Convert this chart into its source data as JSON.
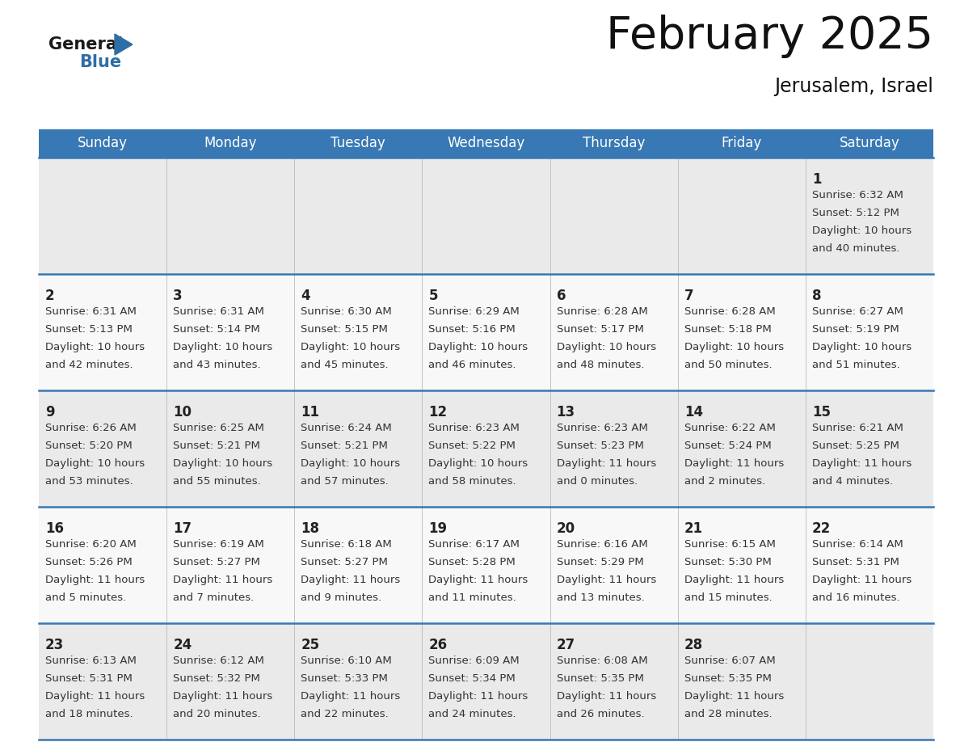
{
  "title": "February 2025",
  "subtitle": "Jerusalem, Israel",
  "header_bg_color": "#3878B4",
  "header_text_color": "#FFFFFF",
  "cell_bg_even": "#EAEAEA",
  "cell_bg_odd": "#F8F8F8",
  "day_number_color": "#222222",
  "info_text_color": "#333333",
  "separator_color": "#3878B4",
  "weekdays": [
    "Sunday",
    "Monday",
    "Tuesday",
    "Wednesday",
    "Thursday",
    "Friday",
    "Saturday"
  ],
  "days": [
    {
      "day": 1,
      "col": 6,
      "row": 0,
      "sunrise": "6:32 AM",
      "sunset": "5:12 PM",
      "daylight_h": "10 hours",
      "daylight_m": "and 40 minutes."
    },
    {
      "day": 2,
      "col": 0,
      "row": 1,
      "sunrise": "6:31 AM",
      "sunset": "5:13 PM",
      "daylight_h": "10 hours",
      "daylight_m": "and 42 minutes."
    },
    {
      "day": 3,
      "col": 1,
      "row": 1,
      "sunrise": "6:31 AM",
      "sunset": "5:14 PM",
      "daylight_h": "10 hours",
      "daylight_m": "and 43 minutes."
    },
    {
      "day": 4,
      "col": 2,
      "row": 1,
      "sunrise": "6:30 AM",
      "sunset": "5:15 PM",
      "daylight_h": "10 hours",
      "daylight_m": "and 45 minutes."
    },
    {
      "day": 5,
      "col": 3,
      "row": 1,
      "sunrise": "6:29 AM",
      "sunset": "5:16 PM",
      "daylight_h": "10 hours",
      "daylight_m": "and 46 minutes."
    },
    {
      "day": 6,
      "col": 4,
      "row": 1,
      "sunrise": "6:28 AM",
      "sunset": "5:17 PM",
      "daylight_h": "10 hours",
      "daylight_m": "and 48 minutes."
    },
    {
      "day": 7,
      "col": 5,
      "row": 1,
      "sunrise": "6:28 AM",
      "sunset": "5:18 PM",
      "daylight_h": "10 hours",
      "daylight_m": "and 50 minutes."
    },
    {
      "day": 8,
      "col": 6,
      "row": 1,
      "sunrise": "6:27 AM",
      "sunset": "5:19 PM",
      "daylight_h": "10 hours",
      "daylight_m": "and 51 minutes."
    },
    {
      "day": 9,
      "col": 0,
      "row": 2,
      "sunrise": "6:26 AM",
      "sunset": "5:20 PM",
      "daylight_h": "10 hours",
      "daylight_m": "and 53 minutes."
    },
    {
      "day": 10,
      "col": 1,
      "row": 2,
      "sunrise": "6:25 AM",
      "sunset": "5:21 PM",
      "daylight_h": "10 hours",
      "daylight_m": "and 55 minutes."
    },
    {
      "day": 11,
      "col": 2,
      "row": 2,
      "sunrise": "6:24 AM",
      "sunset": "5:21 PM",
      "daylight_h": "10 hours",
      "daylight_m": "and 57 minutes."
    },
    {
      "day": 12,
      "col": 3,
      "row": 2,
      "sunrise": "6:23 AM",
      "sunset": "5:22 PM",
      "daylight_h": "10 hours",
      "daylight_m": "and 58 minutes."
    },
    {
      "day": 13,
      "col": 4,
      "row": 2,
      "sunrise": "6:23 AM",
      "sunset": "5:23 PM",
      "daylight_h": "11 hours",
      "daylight_m": "and 0 minutes."
    },
    {
      "day": 14,
      "col": 5,
      "row": 2,
      "sunrise": "6:22 AM",
      "sunset": "5:24 PM",
      "daylight_h": "11 hours",
      "daylight_m": "and 2 minutes."
    },
    {
      "day": 15,
      "col": 6,
      "row": 2,
      "sunrise": "6:21 AM",
      "sunset": "5:25 PM",
      "daylight_h": "11 hours",
      "daylight_m": "and 4 minutes."
    },
    {
      "day": 16,
      "col": 0,
      "row": 3,
      "sunrise": "6:20 AM",
      "sunset": "5:26 PM",
      "daylight_h": "11 hours",
      "daylight_m": "and 5 minutes."
    },
    {
      "day": 17,
      "col": 1,
      "row": 3,
      "sunrise": "6:19 AM",
      "sunset": "5:27 PM",
      "daylight_h": "11 hours",
      "daylight_m": "and 7 minutes."
    },
    {
      "day": 18,
      "col": 2,
      "row": 3,
      "sunrise": "6:18 AM",
      "sunset": "5:27 PM",
      "daylight_h": "11 hours",
      "daylight_m": "and 9 minutes."
    },
    {
      "day": 19,
      "col": 3,
      "row": 3,
      "sunrise": "6:17 AM",
      "sunset": "5:28 PM",
      "daylight_h": "11 hours",
      "daylight_m": "and 11 minutes."
    },
    {
      "day": 20,
      "col": 4,
      "row": 3,
      "sunrise": "6:16 AM",
      "sunset": "5:29 PM",
      "daylight_h": "11 hours",
      "daylight_m": "and 13 minutes."
    },
    {
      "day": 21,
      "col": 5,
      "row": 3,
      "sunrise": "6:15 AM",
      "sunset": "5:30 PM",
      "daylight_h": "11 hours",
      "daylight_m": "and 15 minutes."
    },
    {
      "day": 22,
      "col": 6,
      "row": 3,
      "sunrise": "6:14 AM",
      "sunset": "5:31 PM",
      "daylight_h": "11 hours",
      "daylight_m": "and 16 minutes."
    },
    {
      "day": 23,
      "col": 0,
      "row": 4,
      "sunrise": "6:13 AM",
      "sunset": "5:31 PM",
      "daylight_h": "11 hours",
      "daylight_m": "and 18 minutes."
    },
    {
      "day": 24,
      "col": 1,
      "row": 4,
      "sunrise": "6:12 AM",
      "sunset": "5:32 PM",
      "daylight_h": "11 hours",
      "daylight_m": "and 20 minutes."
    },
    {
      "day": 25,
      "col": 2,
      "row": 4,
      "sunrise": "6:10 AM",
      "sunset": "5:33 PM",
      "daylight_h": "11 hours",
      "daylight_m": "and 22 minutes."
    },
    {
      "day": 26,
      "col": 3,
      "row": 4,
      "sunrise": "6:09 AM",
      "sunset": "5:34 PM",
      "daylight_h": "11 hours",
      "daylight_m": "and 24 minutes."
    },
    {
      "day": 27,
      "col": 4,
      "row": 4,
      "sunrise": "6:08 AM",
      "sunset": "5:35 PM",
      "daylight_h": "11 hours",
      "daylight_m": "and 26 minutes."
    },
    {
      "day": 28,
      "col": 5,
      "row": 4,
      "sunrise": "6:07 AM",
      "sunset": "5:35 PM",
      "daylight_h": "11 hours",
      "daylight_m": "and 28 minutes."
    }
  ],
  "background_color": "#FFFFFF",
  "logo_triangle_color": "#2E6EA6",
  "logo_blue_color": "#2E6EA6",
  "logo_general_color": "#1a1a1a"
}
